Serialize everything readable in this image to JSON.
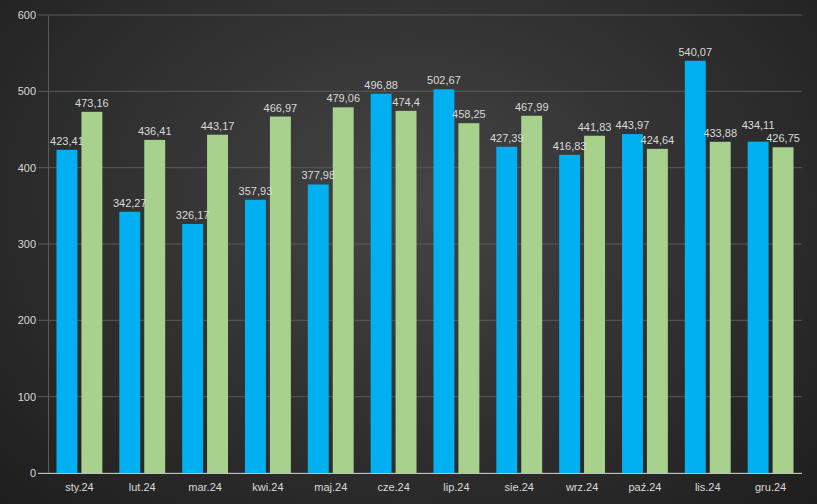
{
  "chart_data": {
    "type": "bar",
    "categories": [
      "sty.24",
      "lut.24",
      "mar.24",
      "kwi.24",
      "maj.24",
      "cze.24",
      "lip.24",
      "sie.24",
      "wrz.24",
      "paź.24",
      "lis.24",
      "gru.24"
    ],
    "series": [
      {
        "color": "#00b0f0",
        "values": [
          423.41,
          342.27,
          326.17,
          357.93,
          377.98,
          496.88,
          502.67,
          427.39,
          416.83,
          443.97,
          540.07,
          434.11
        ],
        "value_labels": [
          "423,41",
          "342,27",
          "326,17",
          "357,93",
          "377,98",
          "496,88",
          "502,67",
          "427,39",
          "416,83",
          "443,97",
          "540,07",
          "434,11"
        ]
      },
      {
        "color": "#a9d18e",
        "values": [
          473.16,
          436.41,
          443.17,
          466.97,
          479.06,
          474.4,
          458.25,
          467.99,
          441.83,
          424.64,
          433.88,
          426.75
        ],
        "value_labels": [
          "473,16",
          "436,41",
          "443,17",
          "466,97",
          "479,06",
          "474,4",
          "458,25",
          "467,99",
          "441,83",
          "424,64",
          "433,88",
          "426,75"
        ]
      }
    ],
    "ylim": [
      0,
      600
    ],
    "yticks": [
      0,
      100,
      200,
      300,
      400,
      500,
      600
    ],
    "grid": true,
    "data_labels": true
  }
}
